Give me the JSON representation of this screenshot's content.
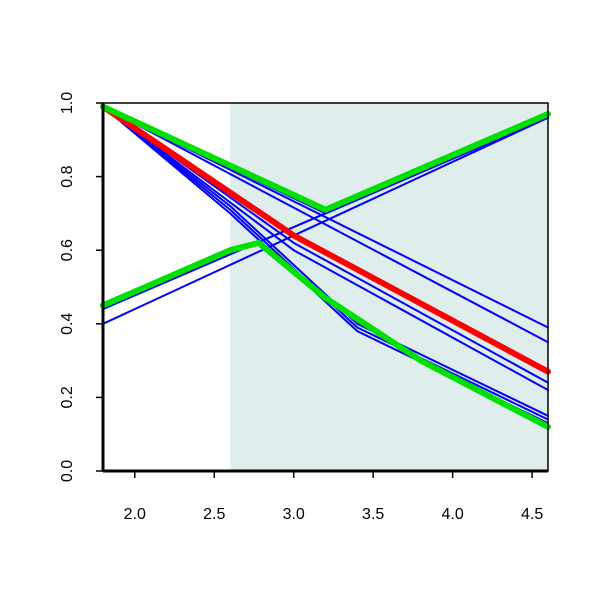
{
  "chart_data": {
    "type": "line",
    "title": "",
    "xlabel": "",
    "ylabel": "",
    "xlim": [
      1.8,
      4.6
    ],
    "ylim": [
      0.0,
      1.0
    ],
    "x_ticks": [
      "2.0",
      "2.5",
      "3.0",
      "3.5",
      "4.0",
      "4.5"
    ],
    "y_ticks": [
      "0.0",
      "0.2",
      "0.4",
      "0.6",
      "0.8",
      "1.0"
    ],
    "shaded_region": {
      "x": [
        2.6,
        4.6
      ],
      "color": "#e0eded"
    },
    "grid": false,
    "legend": "none",
    "series": [
      {
        "color": "#0000ff",
        "width": 2,
        "x": [
          1.8,
          4.6
        ],
        "y": [
          0.99,
          0.39
        ]
      },
      {
        "color": "#0000ff",
        "width": 2,
        "x": [
          1.8,
          4.6
        ],
        "y": [
          0.99,
          0.35
        ]
      },
      {
        "color": "#0000ff",
        "width": 2,
        "x": [
          1.8,
          3.0,
          4.6
        ],
        "y": [
          0.99,
          0.62,
          0.24
        ]
      },
      {
        "color": "#0000ff",
        "width": 2,
        "x": [
          1.8,
          3.0,
          4.6
        ],
        "y": [
          0.99,
          0.6,
          0.22
        ]
      },
      {
        "color": "#0000ff",
        "width": 2,
        "x": [
          1.8,
          2.6,
          3.4,
          4.6
        ],
        "y": [
          0.99,
          0.72,
          0.4,
          0.15
        ]
      },
      {
        "color": "#0000ff",
        "width": 2,
        "x": [
          1.8,
          2.6,
          3.4,
          4.6
        ],
        "y": [
          0.99,
          0.71,
          0.39,
          0.14
        ]
      },
      {
        "color": "#0000ff",
        "width": 2,
        "x": [
          1.8,
          2.6,
          3.4,
          4.6
        ],
        "y": [
          0.99,
          0.7,
          0.38,
          0.13
        ]
      },
      {
        "color": "#0000ff",
        "width": 2,
        "x": [
          1.8,
          4.6
        ],
        "y": [
          0.44,
          0.96
        ]
      },
      {
        "color": "#0000ff",
        "width": 2,
        "x": [
          1.8,
          4.6
        ],
        "y": [
          0.4,
          0.96
        ]
      },
      {
        "color": "#0000ff",
        "width": 2,
        "x": [
          1.8,
          3.2,
          4.6
        ],
        "y": [
          0.99,
          0.7,
          0.96
        ]
      },
      {
        "color": "#ff0000",
        "width": 6,
        "x": [
          1.8,
          3.0,
          4.6
        ],
        "y": [
          0.99,
          0.64,
          0.27
        ]
      },
      {
        "color": "#00e000",
        "width": 6,
        "x": [
          1.8,
          3.2,
          4.6
        ],
        "y": [
          0.99,
          0.71,
          0.97
        ]
      },
      {
        "color": "#00e000",
        "width": 6,
        "x": [
          1.8,
          2.6,
          2.78,
          3.2,
          3.8,
          4.6
        ],
        "y": [
          0.45,
          0.6,
          0.62,
          0.47,
          0.3,
          0.12
        ]
      }
    ]
  }
}
